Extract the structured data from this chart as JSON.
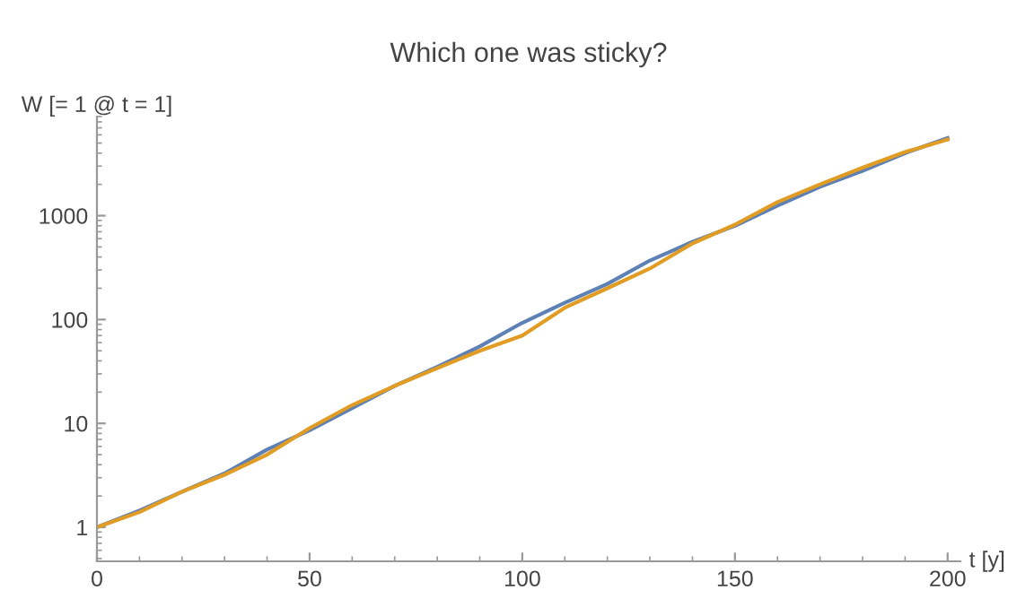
{
  "chart_data": {
    "type": "line",
    "title": "Which one was sticky?",
    "xlabel": "t [y]",
    "ylabel": "W [= 1 @ t = 1]",
    "x": [
      0,
      10,
      20,
      30,
      40,
      50,
      60,
      70,
      80,
      90,
      100,
      110,
      120,
      130,
      140,
      150,
      160,
      170,
      180,
      190,
      200
    ],
    "series": [
      {
        "color": "#5e81b5",
        "values": [
          1,
          1.45,
          2.2,
          3.3,
          5.6,
          8.6,
          14,
          23,
          35,
          55,
          93,
          145,
          220,
          370,
          560,
          800,
          1250,
          1900,
          2700,
          4000,
          5600
        ]
      },
      {
        "color": "#e19c24",
        "values": [
          1,
          1.4,
          2.2,
          3.2,
          5.0,
          9.0,
          15,
          23,
          34,
          50,
          70,
          130,
          200,
          310,
          540,
          820,
          1350,
          2000,
          2900,
          4100,
          5400
        ]
      }
    ],
    "log": "y",
    "xlim": [
      0,
      203
    ],
    "ylim": [
      0.47,
      9000
    ],
    "xticks": [
      0,
      50,
      100,
      150,
      200
    ],
    "yticks": [
      1,
      10,
      100,
      1000
    ],
    "grid": false,
    "marker": "none",
    "line_style": "solid"
  }
}
